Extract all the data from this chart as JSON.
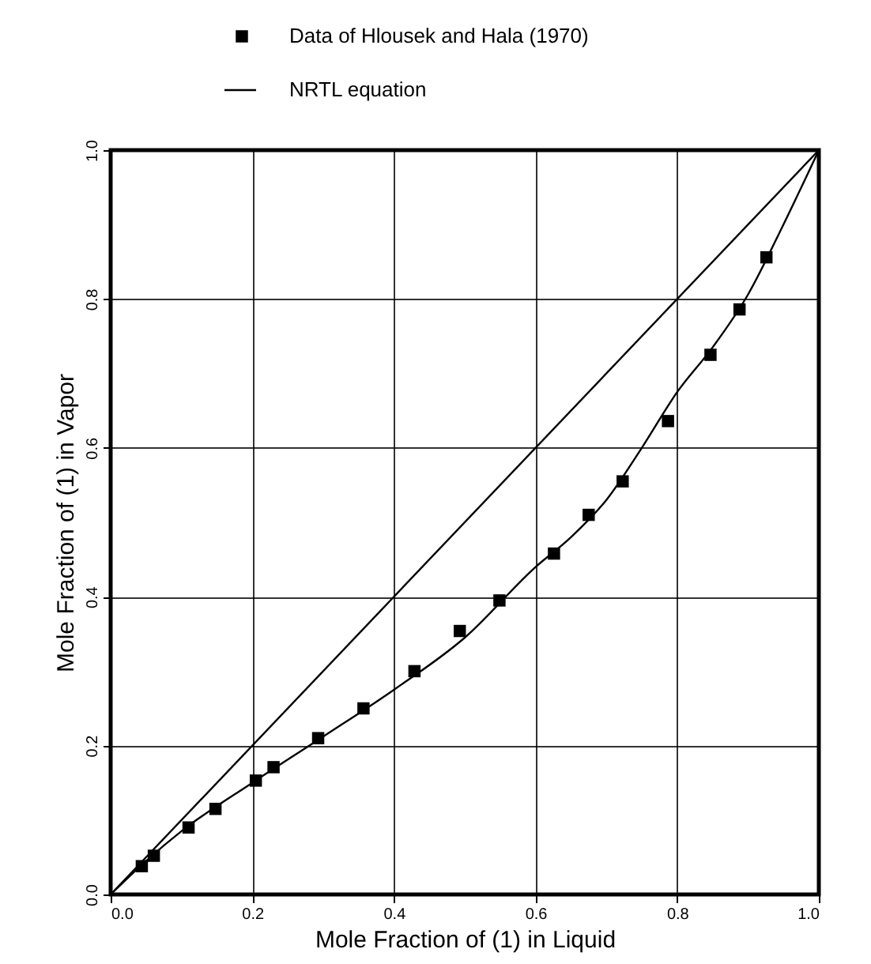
{
  "chart_data": {
    "type": "line",
    "xlabel": "Mole Fraction of (1) in Liquid",
    "ylabel": "Mole Fraction of (1) in Vapor",
    "xlim": [
      0,
      1
    ],
    "ylim": [
      0,
      1
    ],
    "xticks": [
      {
        "value": 0,
        "label": "0.0"
      },
      0.2,
      0.4,
      0.6,
      0.8,
      {
        "value": 1,
        "label": "1.0"
      }
    ],
    "yticks": [
      {
        "value": 0,
        "label": "0.0"
      },
      0.2,
      0.4,
      0.6,
      0.8,
      {
        "value": 1,
        "label": "1.0"
      }
    ],
    "grid": true,
    "legend": "top",
    "series": [
      {
        "name": "Data of Hlousek and Hala (1970)",
        "type": "scatter",
        "marker": "square",
        "color": "#000000",
        "x": [
          0.044,
          0.061,
          0.11,
          0.148,
          0.205,
          0.23,
          0.293,
          0.357,
          0.429,
          0.493,
          0.549,
          0.626,
          0.675,
          0.723,
          0.787,
          0.847,
          0.888,
          0.926
        ],
        "values": [
          0.038,
          0.052,
          0.09,
          0.115,
          0.153,
          0.171,
          0.21,
          0.25,
          0.3,
          0.354,
          0.395,
          0.458,
          0.51,
          0.555,
          0.636,
          0.725,
          0.786,
          0.856
        ]
      },
      {
        "name": "NRTL equation",
        "marker": "none",
        "color": "#000000",
        "x": [
          0,
          0.05,
          0.1,
          0.2,
          0.3,
          0.4,
          0.5,
          0.6,
          0.65,
          0.7,
          0.75,
          0.8,
          0.85,
          0.9,
          0.95,
          1
        ],
        "values": [
          0,
          0.045,
          0.085,
          0.15,
          0.212,
          0.275,
          0.345,
          0.44,
          0.48,
          0.53,
          0.6,
          0.675,
          0.735,
          0.806,
          0.9,
          1
        ]
      },
      {
        "marker": "none",
        "color": "#000000",
        "x": [
          0,
          1
        ],
        "values": [
          0,
          1
        ]
      }
    ]
  }
}
